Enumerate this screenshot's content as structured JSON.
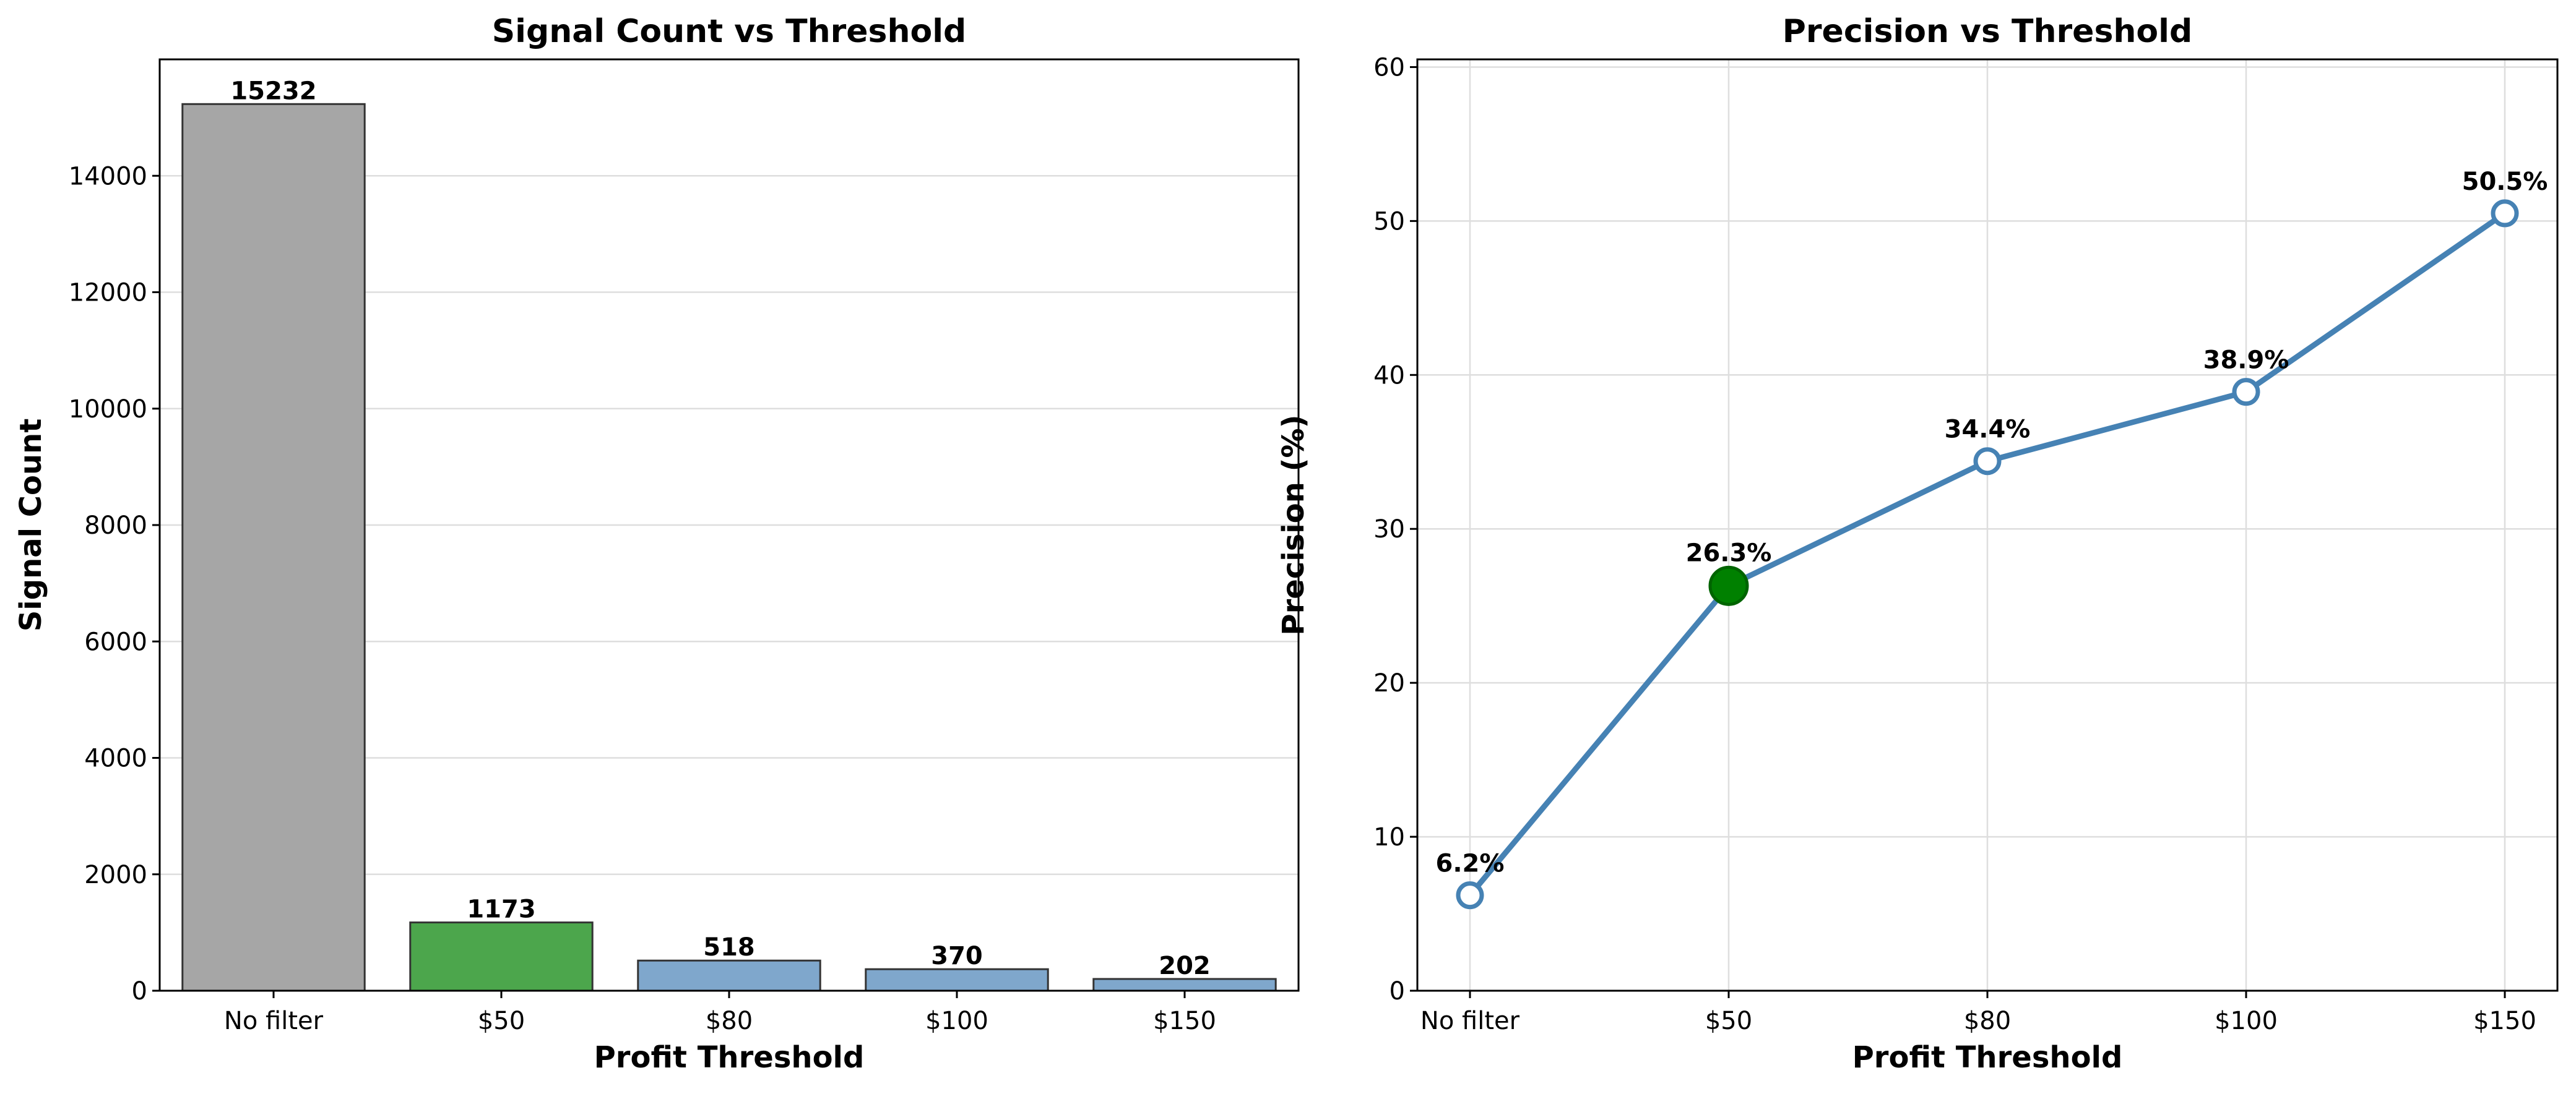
{
  "chart_data": [
    {
      "type": "bar",
      "title": "Signal Count vs Threshold",
      "xlabel": "Profit Threshold",
      "ylabel": "Signal Count",
      "categories": [
        "No filter",
        "$50",
        "$80",
        "$100",
        "$150"
      ],
      "values": [
        15232,
        1173,
        518,
        370,
        202
      ],
      "data_labels": [
        "15232",
        "1173",
        "518",
        "370",
        "202"
      ],
      "bar_colors": [
        "#a6a6a6",
        "#4ca64c",
        "#7fa7cc",
        "#7fa7cc",
        "#7fa7cc"
      ],
      "edge_color": "#333333",
      "ylim": [
        0,
        16000
      ],
      "yticks": [
        0,
        2000,
        4000,
        6000,
        8000,
        10000,
        12000,
        14000
      ],
      "grid": "horizontal"
    },
    {
      "type": "line",
      "title": "Precision vs Threshold",
      "xlabel": "Profit Threshold",
      "ylabel": "Precision (%)",
      "categories": [
        "No filter",
        "$50",
        "$80",
        "$100",
        "$150"
      ],
      "values": [
        6.2,
        26.3,
        34.4,
        38.9,
        50.5
      ],
      "data_labels": [
        "6.2%",
        "26.3%",
        "34.4%",
        "38.9%",
        "50.5%"
      ],
      "highlight_index": 1,
      "line_color": "#4682b4",
      "highlight_color": "#008000",
      "ylim": [
        0,
        60.5
      ],
      "yticks": [
        0,
        10,
        20,
        30,
        40,
        50,
        60
      ],
      "grid": "both"
    }
  ]
}
